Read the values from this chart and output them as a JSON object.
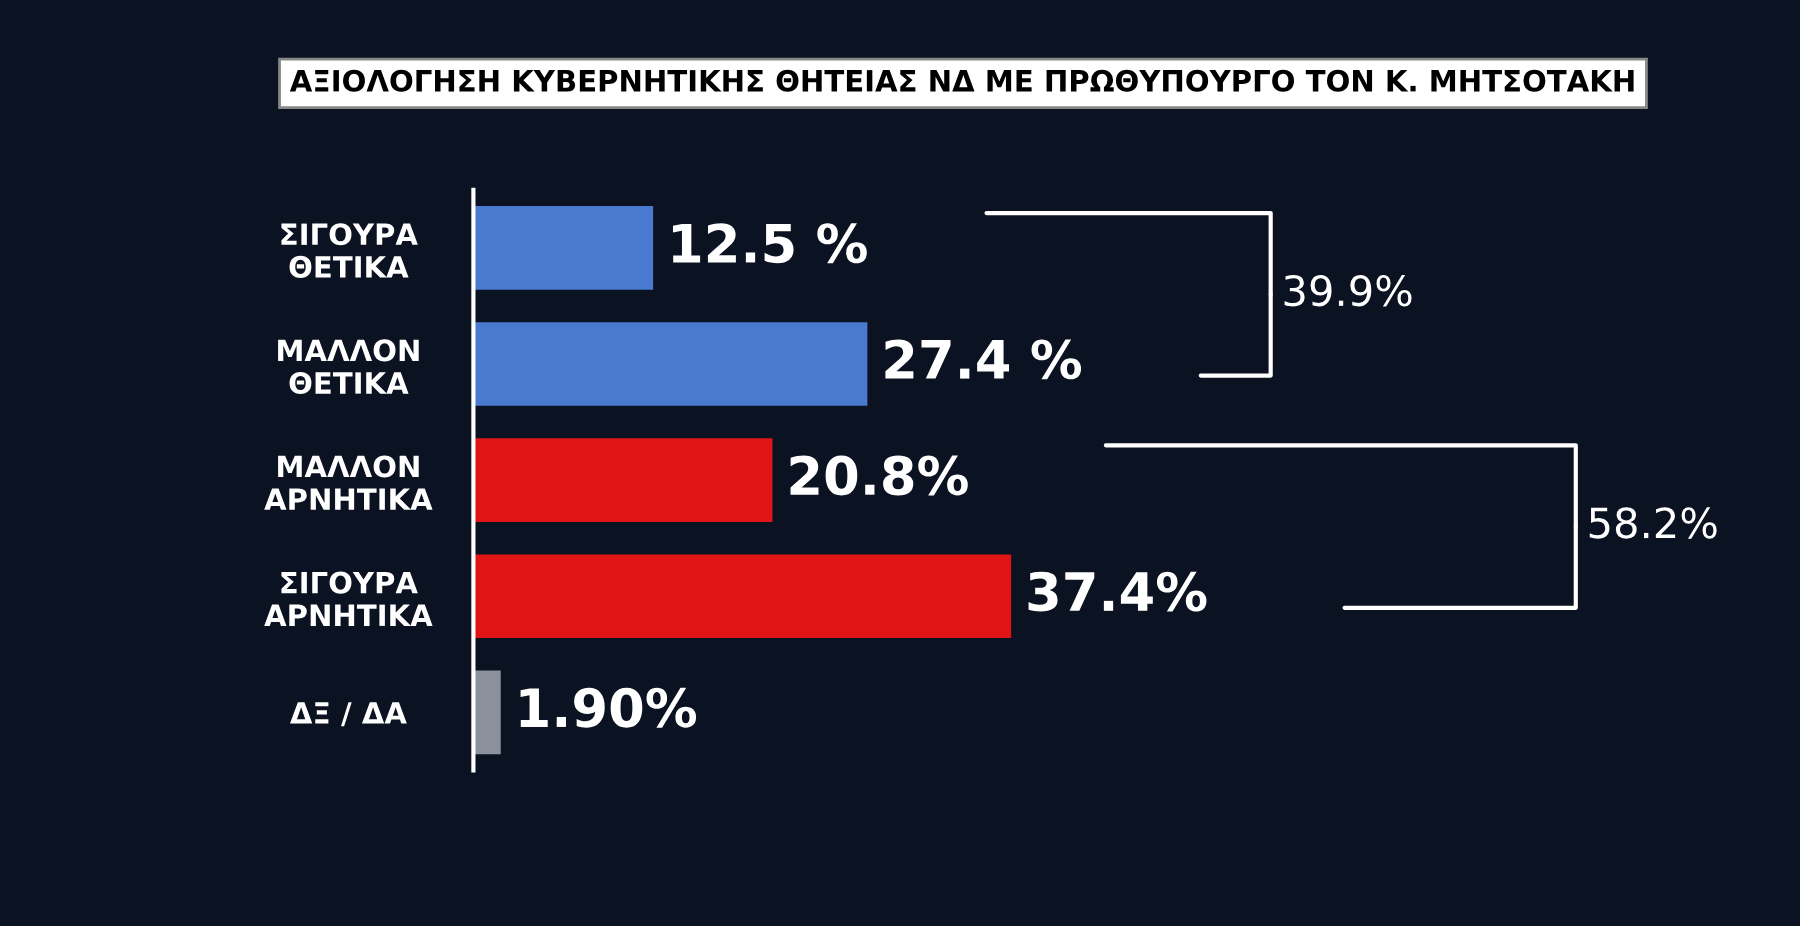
{
  "chart_data": {
    "type": "bar",
    "orientation": "horizontal",
    "title": "ΑΞΙΟΛΟΓΗΣΗ ΚΥΒΕΡΝΗΤΙΚΗΣ ΘΗΤΕΙΑΣ ΝΔ ΜΕ ΠΡΩΘΥΠΟΥΡΓΟ ΤΟΝ Κ. ΜΗΤΣΟΤΑΚΗ",
    "categories": [
      "ΣΙΓΟΥΡΑ\nΘΕΤΙΚΑ",
      "ΜΑΛΛΟΝ\nΘΕΤΙΚΑ",
      "ΜΑΛΛΟΝ\nΑΡΝΗΤΙΚΑ",
      "ΣΙΓΟΥΡΑ\nΑΡΝΗΤΙΚΑ",
      "ΔΞ / ΔΑ"
    ],
    "values": [
      12.5,
      27.4,
      20.8,
      37.4,
      1.9
    ],
    "value_labels": [
      "12.5 %",
      "27.4 %",
      "20.8%",
      "37.4%",
      "1.90%"
    ],
    "colors": [
      "#4a7ad0",
      "#4a7ad0",
      "#e01414",
      "#e01414",
      "#8a909c"
    ],
    "annotations": [
      "39.9%",
      "58.2%"
    ],
    "grid": false,
    "legend": false
  }
}
